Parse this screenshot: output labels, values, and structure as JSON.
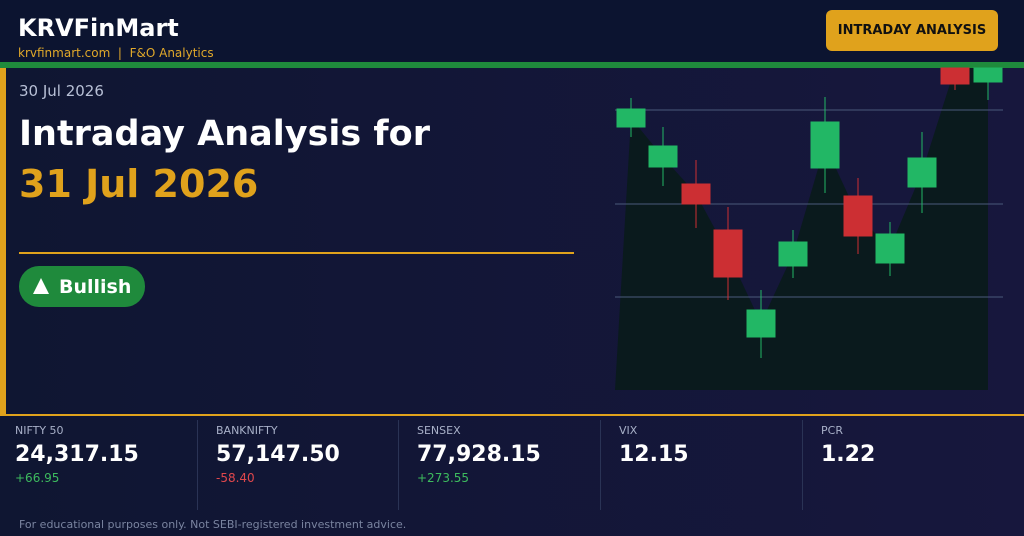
{
  "header": {
    "brand": "KRVFinMart",
    "url": "krvfinmart.com",
    "tagline": "F&O Analytics",
    "badge": "INTRADAY ANALYSIS"
  },
  "date": "30 Jul 2026",
  "headline": {
    "line1": "Intraday Analysis for",
    "line2": "31 Jul 2026"
  },
  "sentiment": "Bullish",
  "tickers": [
    {
      "name": "NIFTY 50",
      "value": "24,317.15",
      "change": "+66.95",
      "color": "#3dbb5e"
    },
    {
      "name": "BANKNIFTY",
      "value": "57,147.50",
      "change": "-58.40",
      "color": "#e0474c"
    },
    {
      "name": "SENSEX",
      "value": "77,928.15",
      "change": "+273.55",
      "color": "#3dbb5e"
    },
    {
      "name": "VIX",
      "value": "12.15"
    },
    {
      "name": "PCR",
      "value": "1.22"
    }
  ],
  "footer": {
    "disclaimer": "For educational purposes only. Not SEBI-registered investment advice."
  }
}
